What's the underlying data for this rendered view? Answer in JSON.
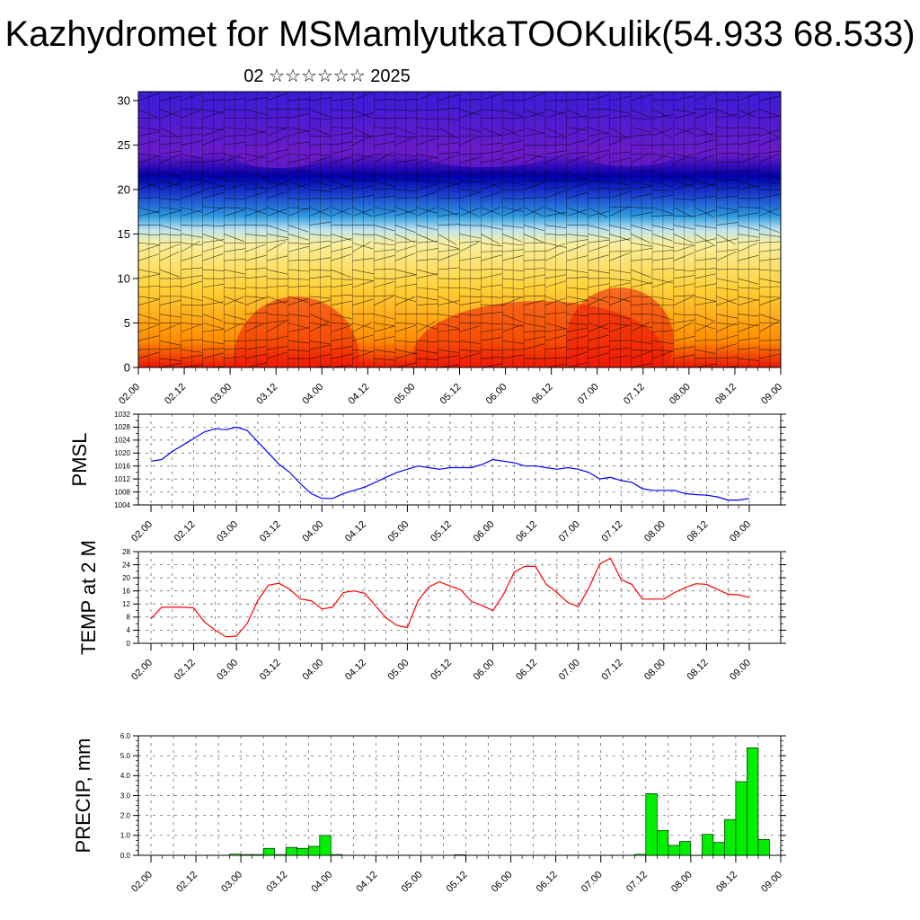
{
  "page": {
    "title": "Kazhydromet for MSMamlyutkaTOOKulik(54.933 68.533)",
    "subtitle": "02 ☆☆☆☆☆☆ 2025"
  },
  "chart_data": [
    {
      "type": "heatmap",
      "name": "vertical cross-section",
      "title": "",
      "ylabel": "",
      "ylim": [
        0,
        31
      ],
      "yticks": [
        0,
        5,
        10,
        15,
        20,
        25,
        30
      ],
      "xticks": [
        "02.00",
        "02.12",
        "03.00",
        "03.12",
        "04.00",
        "04.12",
        "05.00",
        "05.12",
        "06.00",
        "06.12",
        "07.00",
        "07.12",
        "08.00",
        "08.12",
        "09.00"
      ],
      "overlay": "wind barbs and streamlines",
      "colors": [
        "#e8160a",
        "#ff8c00",
        "#ffd23a",
        "#f8f0a0",
        "#bfe3f0",
        "#2e9be0",
        "#1a3ccc",
        "#0000aa",
        "#6a1bc8"
      ],
      "levels": [
        0,
        3,
        9,
        14,
        15.5,
        17,
        19.5,
        21.5,
        24,
        31
      ]
    },
    {
      "type": "line",
      "name": "PMSL",
      "ylabel": "PMSL",
      "ylim": [
        1004,
        1032
      ],
      "yticks": [
        1004,
        1008,
        1012,
        1016,
        1020,
        1024,
        1028,
        1032
      ],
      "xticks": [
        "02.00",
        "02.12",
        "03.00",
        "03.12",
        "04.00",
        "04.12",
        "05.00",
        "05.12",
        "06.00",
        "06.12",
        "07.00",
        "07.12",
        "08.00",
        "08.12",
        "09.00"
      ],
      "color": "#0000ff",
      "x": [
        0,
        3,
        6,
        9,
        12,
        15,
        18,
        21,
        24,
        27,
        30,
        33,
        36,
        39,
        42,
        45,
        48,
        51,
        54,
        57,
        60,
        63,
        66,
        69,
        72,
        75,
        78,
        81,
        84,
        87,
        90,
        93,
        96,
        99,
        102,
        105,
        108,
        111,
        114,
        117,
        120,
        123,
        126,
        129,
        132,
        135,
        138,
        141,
        144,
        147,
        150,
        153,
        156,
        159,
        162,
        165,
        168
      ],
      "values": [
        1017.5,
        1018,
        1020.5,
        1022.5,
        1024.5,
        1026.5,
        1027.5,
        1027.2,
        1028,
        1027,
        1023.5,
        1020,
        1016.5,
        1014,
        1010.5,
        1007.5,
        1006,
        1006,
        1007.5,
        1008.5,
        1009.5,
        1011,
        1012.5,
        1014,
        1015,
        1016,
        1015.5,
        1015,
        1015.5,
        1015.5,
        1015.5,
        1016.5,
        1018,
        1017.5,
        1017,
        1016,
        1016,
        1015.5,
        1015,
        1015.5,
        1015,
        1014,
        1012,
        1012.5,
        1011.5,
        1011,
        1009,
        1008.5,
        1008.5,
        1008.5,
        1007.5,
        1007.2,
        1007,
        1006.5,
        1005.5,
        1005.5,
        1006
      ]
    },
    {
      "type": "line",
      "name": "TEMP at 2 M",
      "ylabel": "TEMP at 2 M",
      "ylim": [
        0,
        28
      ],
      "yticks": [
        0,
        4,
        8,
        12,
        16,
        20,
        24,
        28
      ],
      "xticks": [
        "02.00",
        "02.12",
        "03.00",
        "03.12",
        "04.00",
        "04.12",
        "05.00",
        "05.12",
        "06.00",
        "06.12",
        "07.00",
        "07.12",
        "08.00",
        "08.12",
        "09.00"
      ],
      "color": "#ff0000",
      "x": [
        0,
        3,
        6,
        9,
        12,
        15,
        18,
        21,
        24,
        27,
        30,
        33,
        36,
        39,
        42,
        45,
        48,
        51,
        54,
        57,
        60,
        63,
        66,
        69,
        72,
        75,
        78,
        81,
        84,
        87,
        90,
        93,
        96,
        99,
        102,
        105,
        108,
        111,
        114,
        117,
        120,
        123,
        126,
        129,
        132,
        135,
        138,
        141,
        144,
        147,
        150,
        153,
        156,
        159,
        162,
        165,
        168
      ],
      "values": [
        7.5,
        11,
        11,
        11,
        10.8,
        6.5,
        4,
        2,
        2.2,
        6,
        13,
        17.8,
        18.3,
        16.5,
        13.5,
        13,
        10.5,
        11,
        15.5,
        16,
        15.3,
        11.5,
        7.8,
        5.5,
        4.8,
        13,
        17.2,
        18.8,
        17.5,
        16.3,
        12.8,
        11.5,
        10,
        15,
        21.8,
        23.5,
        23.5,
        18,
        15.5,
        12.5,
        11.2,
        17,
        24.2,
        26,
        19.5,
        18,
        13.5,
        13.5,
        13.5,
        15.5,
        17,
        18.2,
        18,
        16.5,
        15,
        14.8,
        14
      ]
    },
    {
      "type": "bar",
      "name": "PRECIP, mm",
      "ylabel": "PRECIP, mm",
      "ylim": [
        0,
        6
      ],
      "yticks": [
        "0.0",
        "1.0",
        "2.0",
        "3.0",
        "4.0",
        "5.0",
        "6.0"
      ],
      "xticks": [
        "02.00",
        "02.12",
        "03.00",
        "03.12",
        "04.00",
        "04.12",
        "05.00",
        "05.12",
        "06.00",
        "06.12",
        "07.00",
        "07.12",
        "08.00",
        "08.12",
        "09.00"
      ],
      "color": "#00ee00",
      "bar_hours": 3,
      "x": [
        24,
        27,
        30,
        33,
        36,
        39,
        42,
        45,
        48,
        51,
        84,
        132,
        135,
        138,
        141,
        144,
        147,
        150,
        153,
        156,
        159,
        162,
        165
      ],
      "values": [
        0.06,
        0.04,
        0.04,
        0.35,
        0.04,
        0.4,
        0.35,
        0.45,
        1.0,
        0.04,
        0.03,
        0.05,
        3.1,
        1.25,
        0.5,
        0.7,
        0.0,
        1.05,
        0.65,
        1.8,
        3.7,
        5.4,
        0.8
      ]
    }
  ]
}
